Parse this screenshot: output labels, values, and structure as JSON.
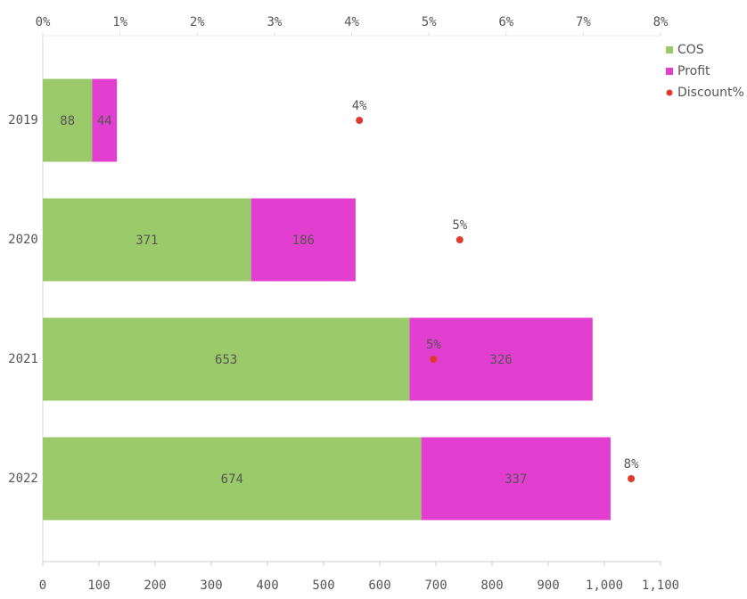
{
  "chart_data": {
    "type": "bar",
    "orientation": "horizontal",
    "stacked": true,
    "categories": [
      "2019",
      "2020",
      "2021",
      "2022"
    ],
    "series": [
      {
        "name": "COS",
        "color": "#9bca6a",
        "label_color": "#555555",
        "values": [
          88,
          371,
          653,
          674
        ]
      },
      {
        "name": "Profit",
        "color": "#e23fd0",
        "label_color": "#ffffff",
        "values": [
          44,
          186,
          326,
          337
        ]
      },
      {
        "name": "Discount%",
        "color": "#e03a2f",
        "label_color": "#b5474a",
        "axis": "x2",
        "values": [
          4.1,
          5.4,
          5.06,
          7.62
        ],
        "value_labels": [
          "4%",
          "5%",
          "5%",
          "8%"
        ]
      }
    ],
    "xlim": [
      0,
      1100
    ],
    "xticks": [
      0,
      100,
      200,
      300,
      400,
      500,
      600,
      700,
      800,
      900,
      {
        "value": 1000,
        "label": "1,000"
      },
      {
        "value": 1100,
        "label": "1,100"
      }
    ],
    "x2lim": [
      0,
      8
    ],
    "x2ticks": [
      {
        "value": 0,
        "label": "0%"
      },
      {
        "value": 1,
        "label": "1%"
      },
      {
        "value": 2,
        "label": "2%"
      },
      {
        "value": 3,
        "label": "3%"
      },
      {
        "value": 4,
        "label": "4%"
      },
      {
        "value": 5,
        "label": "5%"
      },
      {
        "value": 6,
        "label": "6%"
      },
      {
        "value": 7,
        "label": "7%"
      },
      {
        "value": 8,
        "label": "8%"
      }
    ],
    "legend": "top-right"
  }
}
